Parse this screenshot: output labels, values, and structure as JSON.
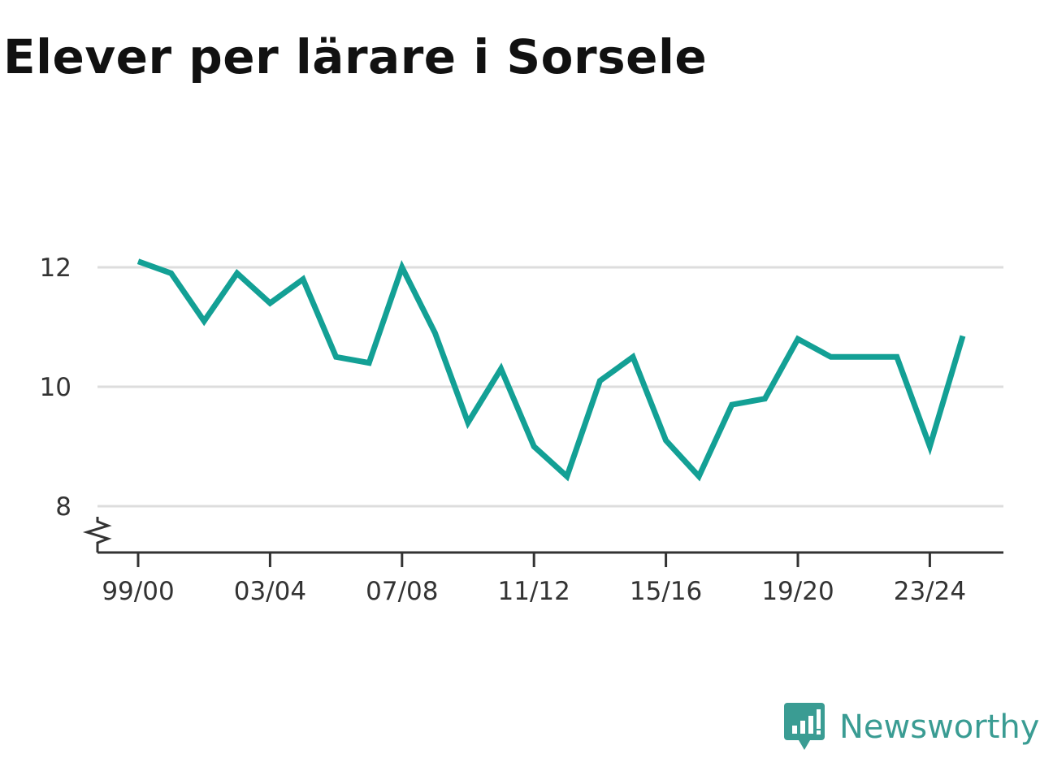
{
  "title": "Elever per lärare i Sorsele",
  "brand": {
    "name": "Newsworthy",
    "icon": "newsworthy-logo-icon",
    "color": "#3a9c93"
  },
  "colors": {
    "line": "#13a095",
    "grid": "#dddddd",
    "axis": "#333333"
  },
  "chart_data": {
    "type": "line",
    "title": "Elever per lärare i Sorsele",
    "xlabel": "",
    "ylabel": "",
    "ylim": [
      7.3,
      12.5
    ],
    "grid": true,
    "y_axis_break": true,
    "yticks": [
      8,
      10,
      12
    ],
    "x_tick_labels": [
      "99/00",
      "03/04",
      "07/08",
      "11/12",
      "15/16",
      "19/20",
      "23/24"
    ],
    "x_tick_index": [
      0,
      4,
      8,
      12,
      16,
      20,
      24
    ],
    "x": [
      "99/00",
      "00/01",
      "01/02",
      "02/03",
      "03/04",
      "04/05",
      "05/06",
      "06/07",
      "07/08",
      "08/09",
      "09/10",
      "10/11",
      "11/12",
      "12/13",
      "13/14",
      "14/15",
      "15/16",
      "16/17",
      "17/18",
      "18/19",
      "19/20",
      "20/21",
      "21/22",
      "22/23",
      "23/24",
      "24/25"
    ],
    "series": [
      {
        "values": [
          12.1,
          11.9,
          11.1,
          11.9,
          11.4,
          11.8,
          10.5,
          10.4,
          12.0,
          10.9,
          9.4,
          10.3,
          9.0,
          8.5,
          10.1,
          10.5,
          9.1,
          8.5,
          9.7,
          9.8,
          10.8,
          10.5,
          10.5,
          10.5,
          9.0,
          10.85
        ]
      }
    ]
  }
}
